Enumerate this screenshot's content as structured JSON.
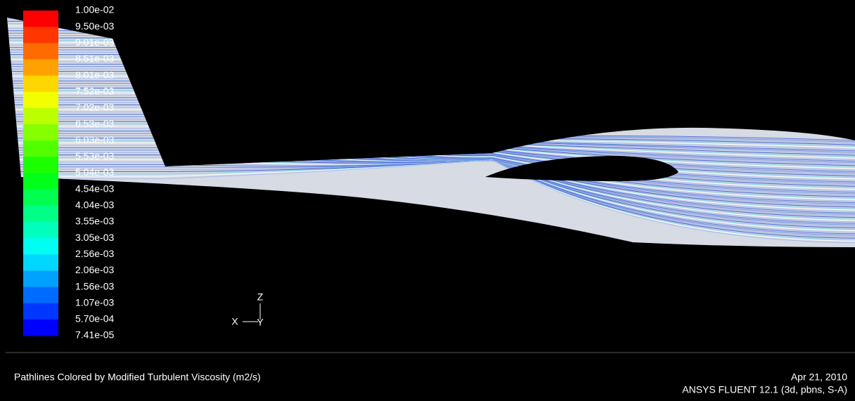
{
  "legend": {
    "labels": [
      "1.00e-02",
      "9.50e-03",
      "9.01e-03",
      "8.51e-03",
      "8.01e-03",
      "7.52e-03",
      "7.02e-03",
      "6.53e-03",
      "6.03e-03",
      "5.53e-03",
      "5.04e-03",
      "4.54e-03",
      "4.04e-03",
      "3.55e-03",
      "3.05e-03",
      "2.56e-03",
      "2.06e-03",
      "1.56e-03",
      "1.07e-03",
      "5.70e-04",
      "7.41e-05"
    ]
  },
  "axes_triad": {
    "z": "Z",
    "x": "X",
    "y": "Y"
  },
  "footer": {
    "caption": "Pathlines Colored by Modified Turbulent Viscosity (m2/s)",
    "date": "Apr 21, 2010",
    "software": "ANSYS FLUENT 12.1 (3d, pbns, S-A)"
  }
}
